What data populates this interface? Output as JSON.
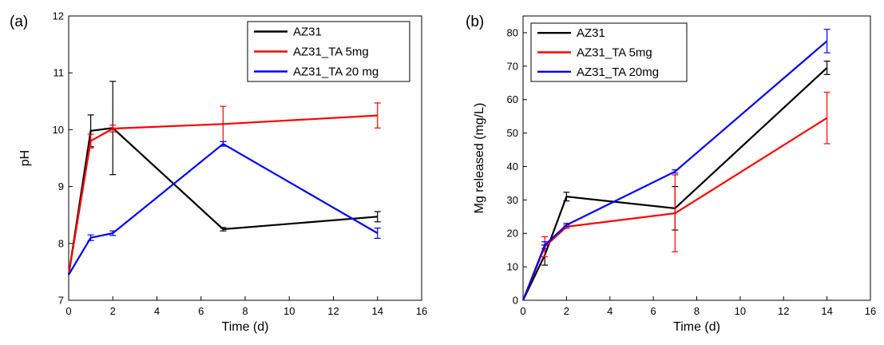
{
  "chart_data": [
    {
      "type": "line",
      "panel_label": "(a)",
      "xlabel": "Time (d)",
      "ylabel": "pH",
      "xlim": [
        0,
        16
      ],
      "ylim": [
        7,
        12
      ],
      "xticks": [
        0,
        2,
        4,
        6,
        8,
        10,
        12,
        14,
        16
      ],
      "yticks": [
        7,
        8,
        9,
        10,
        11,
        12
      ],
      "grid": false,
      "legend_position": "top-right",
      "series": [
        {
          "name": "AZ31",
          "color": "#000000",
          "x": [
            0,
            1,
            2,
            7,
            14
          ],
          "y": [
            7.45,
            9.98,
            10.03,
            8.25,
            8.47
          ],
          "yerr": [
            0,
            0.28,
            0.82,
            0.03,
            0.09
          ]
        },
        {
          "name": "AZ31_TA 5mg",
          "color": "#ff0000",
          "x": [
            0,
            1,
            2,
            7,
            14
          ],
          "y": [
            7.45,
            9.8,
            10.02,
            10.1,
            10.25
          ],
          "yerr": [
            0,
            0.12,
            0.06,
            0.31,
            0.22
          ]
        },
        {
          "name": "AZ31_TA 20 mg",
          "color": "#0000ff",
          "x": [
            0,
            1,
            2,
            7,
            14
          ],
          "y": [
            7.45,
            8.1,
            8.18,
            9.75,
            8.18
          ],
          "yerr": [
            0,
            0.05,
            0.04,
            0.04,
            0.09
          ]
        }
      ]
    },
    {
      "type": "line",
      "panel_label": "(b)",
      "xlabel": "Time (d)",
      "ylabel": "Mg released (mg/L)",
      "xlim": [
        0,
        16
      ],
      "ylim": [
        0,
        85
      ],
      "xticks": [
        0,
        2,
        4,
        6,
        8,
        10,
        12,
        14,
        16
      ],
      "yticks": [
        0,
        10,
        20,
        30,
        40,
        50,
        60,
        70,
        80
      ],
      "grid": false,
      "legend_position": "top-left",
      "series": [
        {
          "name": "AZ31",
          "color": "#000000",
          "x": [
            0,
            1,
            2,
            7,
            14
          ],
          "y": [
            0,
            13.5,
            31,
            27.5,
            69.5
          ],
          "yerr": [
            0,
            3,
            1.3,
            6.5,
            2
          ]
        },
        {
          "name": "AZ31_TA 5mg",
          "color": "#ff0000",
          "x": [
            0,
            1,
            2,
            7,
            14
          ],
          "y": [
            0,
            16,
            22,
            26,
            54.5
          ],
          "yerr": [
            0,
            3,
            0.5,
            11.5,
            7.7
          ]
        },
        {
          "name": "AZ31_TA 20mg",
          "color": "#0000ff",
          "x": [
            0,
            1,
            2,
            7,
            14
          ],
          "y": [
            0,
            16.5,
            22.5,
            38.5,
            77.5
          ],
          "yerr": [
            0,
            1,
            0.5,
            0.5,
            3.5
          ]
        }
      ]
    }
  ]
}
